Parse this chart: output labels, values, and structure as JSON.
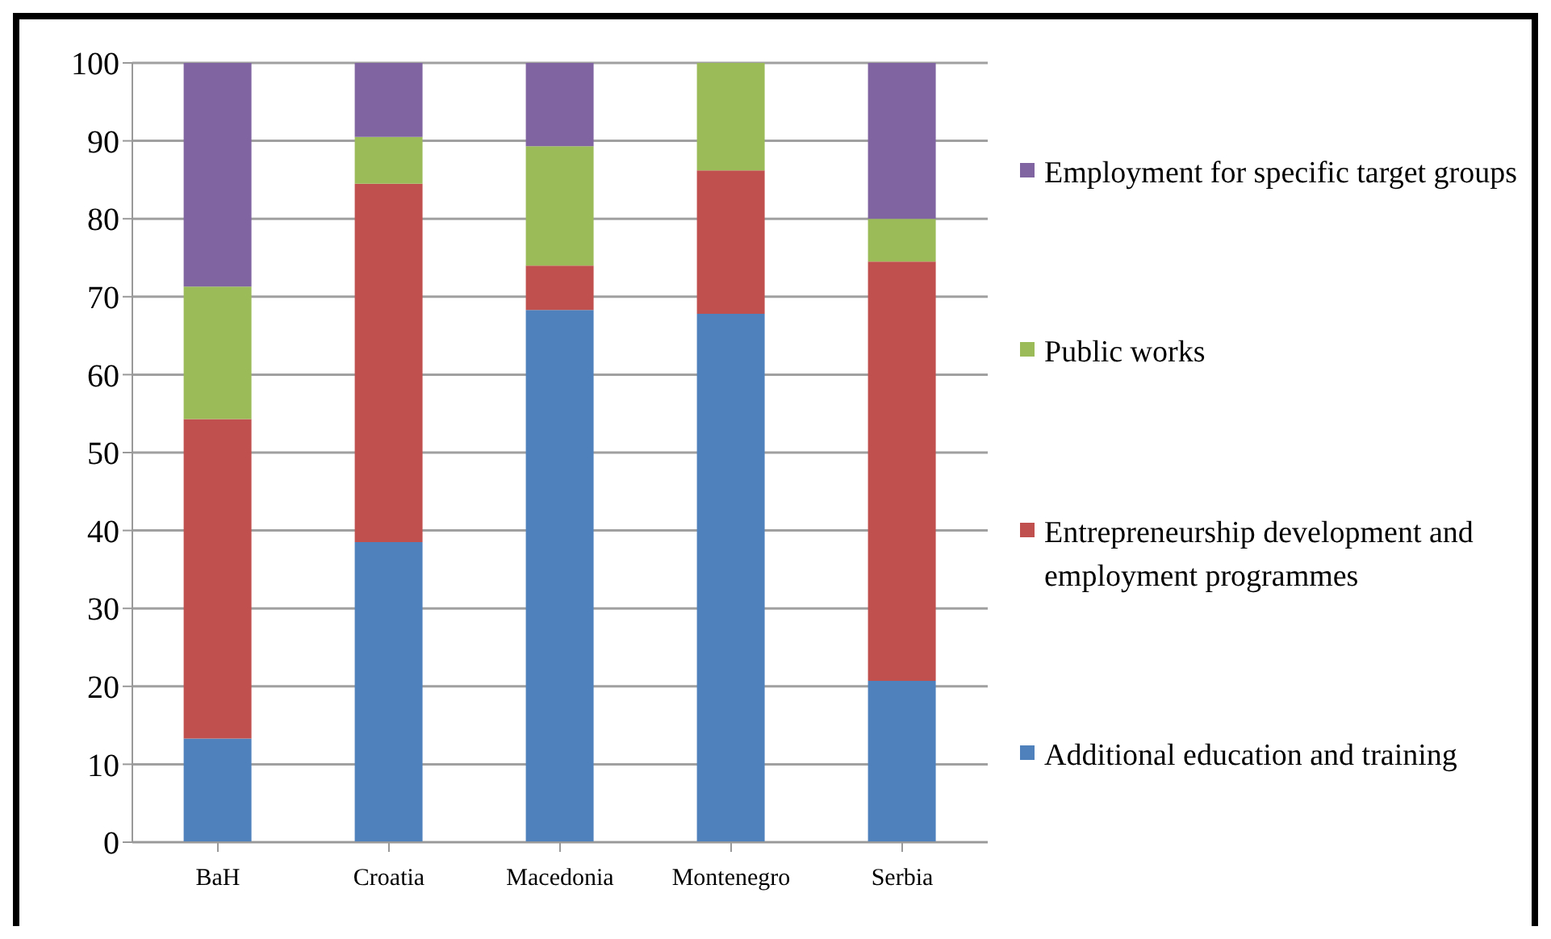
{
  "chart_data": {
    "type": "bar",
    "stacked": true,
    "categories": [
      "BaH",
      "Croatia",
      "Macedonia",
      "Montenegro",
      "Serbia"
    ],
    "series": [
      {
        "name": "Additional education and training",
        "color": "#4f81bd",
        "values": [
          13.3,
          38.5,
          68.3,
          67.8,
          20.7
        ]
      },
      {
        "name": "Entrepreneurship development and employment programmes",
        "color": "#c0504d",
        "values": [
          41,
          46,
          5.7,
          18.4,
          53.8
        ]
      },
      {
        "name": "Public works",
        "color": "#9bbb59",
        "values": [
          17,
          6,
          15.3,
          13.8,
          5.5
        ]
      },
      {
        "name": "Employment for specific target groups",
        "color": "#8064a2",
        "values": [
          28.7,
          9.5,
          10.7,
          0,
          20
        ]
      }
    ],
    "ylim": [
      0,
      100
    ],
    "yticks": [
      0,
      10,
      20,
      30,
      40,
      50,
      60,
      70,
      80,
      90,
      100
    ],
    "grid": "y",
    "legend": "right"
  }
}
